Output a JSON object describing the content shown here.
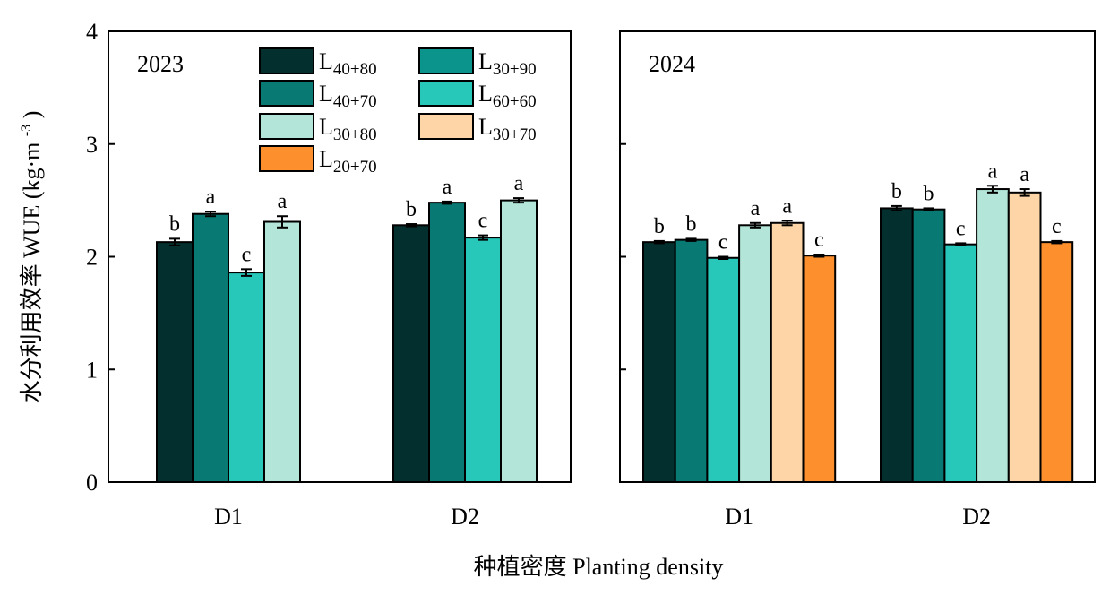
{
  "figure": {
    "ylabel_zh": "水分利用效率",
    "ylabel_en": "WUE",
    "ylabel_unit_base": "(kg·m",
    "ylabel_unit_exp": "-3",
    "ylabel_unit_close": ")",
    "xlabel": "种植密度 Planting density"
  },
  "legend": [
    {
      "base": "L",
      "sub": "40+80",
      "color": "#032f2e"
    },
    {
      "base": "L",
      "sub": "30+90",
      "color": "#0a948c"
    },
    {
      "base": "L",
      "sub": "40+70",
      "color": "#097a73"
    },
    {
      "base": "L",
      "sub": "60+60",
      "color": "#27c7b9"
    },
    {
      "base": "L",
      "sub": "30+80",
      "color": "#b3e6d8"
    },
    {
      "base": "L",
      "sub": "30+70",
      "color": "#fdd5a6"
    },
    {
      "base": "L",
      "sub": "20+70",
      "color": "#fd8f2d"
    }
  ],
  "chart_data": [
    {
      "type": "bar",
      "title": "2023",
      "categories": [
        "D1",
        "D2"
      ],
      "ylim": [
        0,
        4
      ],
      "yticks": [
        "0",
        "1",
        "2",
        "3",
        "4"
      ],
      "series": [
        {
          "name": "L40+80",
          "color": "#032f2e",
          "values": [
            2.13,
            2.28
          ],
          "errors": [
            0.03,
            0.01
          ],
          "letters": [
            "b",
            "b"
          ]
        },
        {
          "name": "L40+70",
          "color": "#097a73",
          "values": [
            2.38,
            2.48
          ],
          "errors": [
            0.02,
            0.01
          ],
          "letters": [
            "a",
            "a"
          ]
        },
        {
          "name": "L60+60",
          "color": "#27c7b9",
          "values": [
            1.86,
            2.17
          ],
          "errors": [
            0.03,
            0.02
          ],
          "letters": [
            "c",
            "c"
          ]
        },
        {
          "name": "L30+80",
          "color": "#b3e6d8",
          "values": [
            2.31,
            2.5
          ],
          "errors": [
            0.05,
            0.02
          ],
          "letters": [
            "a",
            "a"
          ]
        }
      ]
    },
    {
      "type": "bar",
      "title": "2024",
      "categories": [
        "D1",
        "D2"
      ],
      "ylim": [
        0,
        4
      ],
      "yticks": [
        "0",
        "1",
        "2",
        "3",
        "4"
      ],
      "series": [
        {
          "name": "L40+80",
          "color": "#032f2e",
          "values": [
            2.13,
            2.43
          ],
          "errors": [
            0.01,
            0.02
          ],
          "letters": [
            "b",
            "b"
          ]
        },
        {
          "name": "L40+70",
          "color": "#097a73",
          "values": [
            2.15,
            2.42
          ],
          "errors": [
            0.01,
            0.01
          ],
          "letters": [
            "b",
            "b"
          ]
        },
        {
          "name": "L60+60",
          "color": "#27c7b9",
          "values": [
            1.99,
            2.11
          ],
          "errors": [
            0.01,
            0.01
          ],
          "letters": [
            "c",
            "c"
          ]
        },
        {
          "name": "L30+80",
          "color": "#b3e6d8",
          "values": [
            2.28,
            2.6
          ],
          "errors": [
            0.02,
            0.03
          ],
          "letters": [
            "a",
            "a"
          ]
        },
        {
          "name": "L30+70",
          "color": "#fdd5a6",
          "values": [
            2.3,
            2.57
          ],
          "errors": [
            0.02,
            0.03
          ],
          "letters": [
            "a",
            "a"
          ]
        },
        {
          "name": "L20+70",
          "color": "#fd8f2d",
          "values": [
            2.01,
            2.13
          ],
          "errors": [
            0.01,
            0.01
          ],
          "letters": [
            "c",
            "c"
          ]
        }
      ]
    }
  ]
}
